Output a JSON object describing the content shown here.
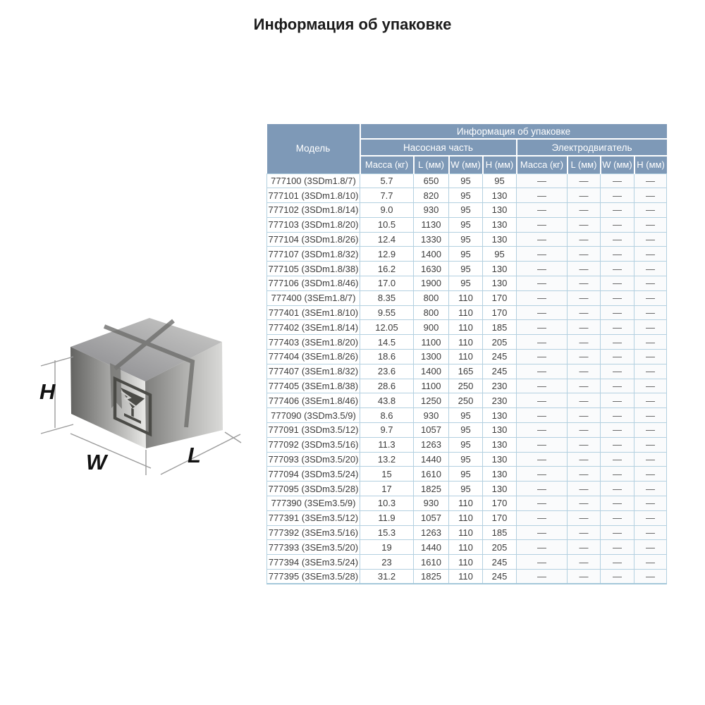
{
  "title": "Информация об упаковке",
  "figure": {
    "icon": "package-box-illustration",
    "fragile_icon": "fragile-glass-icon",
    "height_label": "H",
    "width_label": "W",
    "length_label": "L"
  },
  "colors": {
    "header_bg": "#7e99b7",
    "header_text": "#ffffff",
    "body_border": "#b3d0e0",
    "body_text": "#3c3c3c"
  },
  "table": {
    "model_header": "Модель",
    "packaging_group": "Информация об упаковке",
    "pump_group": "Насосная часть",
    "motor_group": "Электродвигатель",
    "subheaders": [
      "Масса (кг)",
      "L (мм)",
      "W (мм)",
      "H (мм)"
    ],
    "empty_value": "—",
    "rows": [
      {
        "model": "777100 (3SDm1.8/7)",
        "pump": [
          "5.7",
          "650",
          "95",
          "95"
        ],
        "motor": [
          "—",
          "—",
          "—",
          "—"
        ]
      },
      {
        "model": "777101 (3SDm1.8/10)",
        "pump": [
          "7.7",
          "820",
          "95",
          "130"
        ],
        "motor": [
          "—",
          "—",
          "—",
          "—"
        ]
      },
      {
        "model": "777102 (3SDm1.8/14)",
        "pump": [
          "9.0",
          "930",
          "95",
          "130"
        ],
        "motor": [
          "—",
          "—",
          "—",
          "—"
        ]
      },
      {
        "model": "777103 (3SDm1.8/20)",
        "pump": [
          "10.5",
          "1130",
          "95",
          "130"
        ],
        "motor": [
          "—",
          "—",
          "—",
          "—"
        ]
      },
      {
        "model": "777104 (3SDm1.8/26)",
        "pump": [
          "12.4",
          "1330",
          "95",
          "130"
        ],
        "motor": [
          "—",
          "—",
          "—",
          "—"
        ]
      },
      {
        "model": "777107 (3SDm1.8/32)",
        "pump": [
          "12.9",
          "1400",
          "95",
          "95"
        ],
        "motor": [
          "—",
          "—",
          "—",
          "—"
        ]
      },
      {
        "model": "777105 (3SDm1.8/38)",
        "pump": [
          "16.2",
          "1630",
          "95",
          "130"
        ],
        "motor": [
          "—",
          "—",
          "—",
          "—"
        ]
      },
      {
        "model": "777106 (3SDm1.8/46)",
        "pump": [
          "17.0",
          "1900",
          "95",
          "130"
        ],
        "motor": [
          "—",
          "—",
          "—",
          "—"
        ]
      },
      {
        "model": "777400 (3SEm1.8/7)",
        "pump": [
          "8.35",
          "800",
          "110",
          "170"
        ],
        "motor": [
          "—",
          "—",
          "—",
          "—"
        ]
      },
      {
        "model": "777401 (3SEm1.8/10)",
        "pump": [
          "9.55",
          "800",
          "110",
          "170"
        ],
        "motor": [
          "—",
          "—",
          "—",
          "—"
        ]
      },
      {
        "model": "777402 (3SEm1.8/14)",
        "pump": [
          "12.05",
          "900",
          "110",
          "185"
        ],
        "motor": [
          "—",
          "—",
          "—",
          "—"
        ]
      },
      {
        "model": "777403 (3SEm1.8/20)",
        "pump": [
          "14.5",
          "1100",
          "110",
          "205"
        ],
        "motor": [
          "—",
          "—",
          "—",
          "—"
        ]
      },
      {
        "model": "777404 (3SEm1.8/26)",
        "pump": [
          "18.6",
          "1300",
          "110",
          "245"
        ],
        "motor": [
          "—",
          "—",
          "—",
          "—"
        ]
      },
      {
        "model": "777407 (3SEm1.8/32)",
        "pump": [
          "23.6",
          "1400",
          "165",
          "245"
        ],
        "motor": [
          "—",
          "—",
          "—",
          "—"
        ]
      },
      {
        "model": "777405 (3SEm1.8/38)",
        "pump": [
          "28.6",
          "1100",
          "250",
          "230"
        ],
        "motor": [
          "—",
          "—",
          "—",
          "—"
        ]
      },
      {
        "model": "777406 (3SEm1.8/46)",
        "pump": [
          "43.8",
          "1250",
          "250",
          "230"
        ],
        "motor": [
          "—",
          "—",
          "—",
          "—"
        ]
      },
      {
        "model": "777090 (3SDm3.5/9)",
        "pump": [
          "8.6",
          "930",
          "95",
          "130"
        ],
        "motor": [
          "—",
          "—",
          "—",
          "—"
        ]
      },
      {
        "model": "777091 (3SDm3.5/12)",
        "pump": [
          "9.7",
          "1057",
          "95",
          "130"
        ],
        "motor": [
          "—",
          "—",
          "—",
          "—"
        ]
      },
      {
        "model": "777092 (3SDm3.5/16)",
        "pump": [
          "11.3",
          "1263",
          "95",
          "130"
        ],
        "motor": [
          "—",
          "—",
          "—",
          "—"
        ]
      },
      {
        "model": "777093 (3SDm3.5/20)",
        "pump": [
          "13.2",
          "1440",
          "95",
          "130"
        ],
        "motor": [
          "—",
          "—",
          "—",
          "—"
        ]
      },
      {
        "model": "777094 (3SDm3.5/24)",
        "pump": [
          "15",
          "1610",
          "95",
          "130"
        ],
        "motor": [
          "—",
          "—",
          "—",
          "—"
        ]
      },
      {
        "model": "777095 (3SDm3.5/28)",
        "pump": [
          "17",
          "1825",
          "95",
          "130"
        ],
        "motor": [
          "—",
          "—",
          "—",
          "—"
        ]
      },
      {
        "model": "777390 (3SEm3.5/9)",
        "pump": [
          "10.3",
          "930",
          "110",
          "170"
        ],
        "motor": [
          "—",
          "—",
          "—",
          "—"
        ]
      },
      {
        "model": "777391 (3SEm3.5/12)",
        "pump": [
          "11.9",
          "1057",
          "110",
          "170"
        ],
        "motor": [
          "—",
          "—",
          "—",
          "—"
        ]
      },
      {
        "model": "777392 (3SEm3.5/16)",
        "pump": [
          "15.3",
          "1263",
          "110",
          "185"
        ],
        "motor": [
          "—",
          "—",
          "—",
          "—"
        ]
      },
      {
        "model": "777393 (3SEm3.5/20)",
        "pump": [
          "19",
          "1440",
          "110",
          "205"
        ],
        "motor": [
          "—",
          "—",
          "—",
          "—"
        ]
      },
      {
        "model": "777394 (3SEm3.5/24)",
        "pump": [
          "23",
          "1610",
          "110",
          "245"
        ],
        "motor": [
          "—",
          "—",
          "—",
          "—"
        ]
      },
      {
        "model": "777395 (3SEm3.5/28)",
        "pump": [
          "31.2",
          "1825",
          "110",
          "245"
        ],
        "motor": [
          "—",
          "—",
          "—",
          "—"
        ]
      }
    ]
  }
}
